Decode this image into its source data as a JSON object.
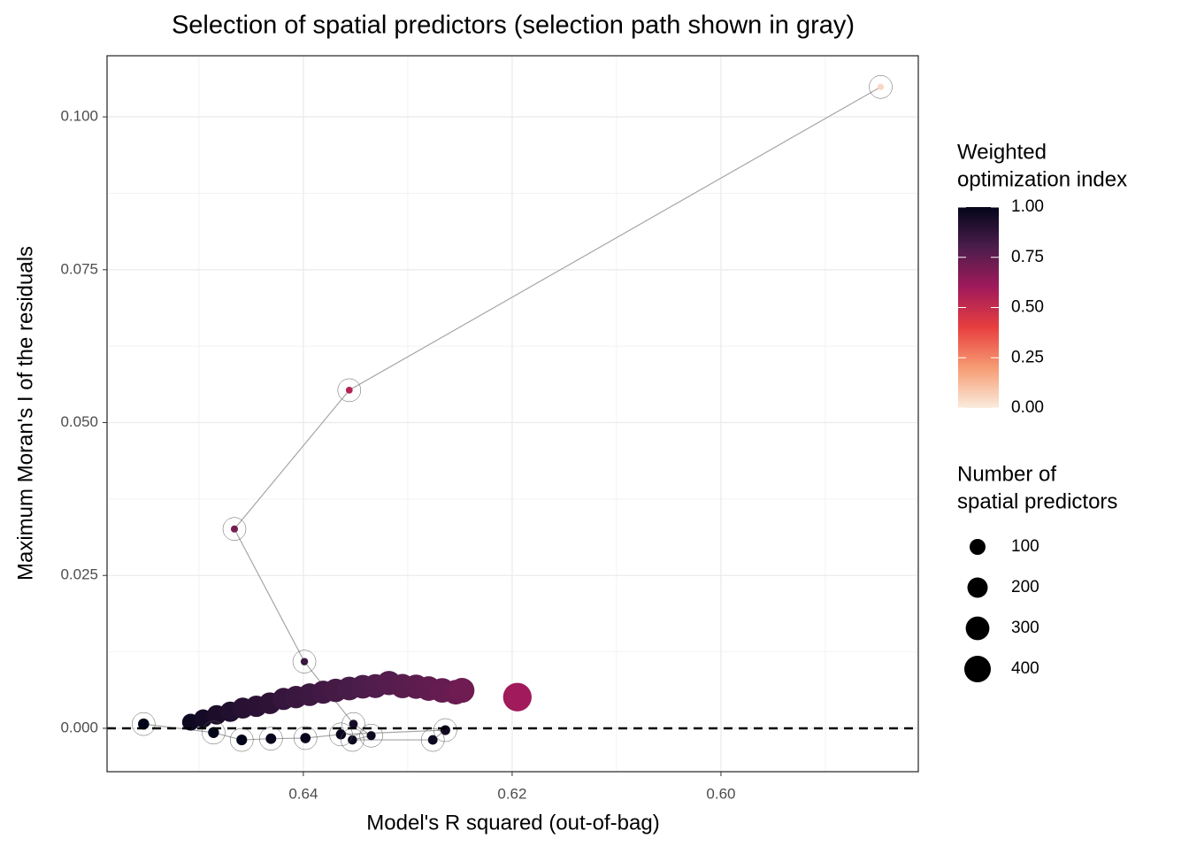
{
  "chart_data": {
    "type": "scatter",
    "title": "Selection of spatial predictors (selection path shown in gray)",
    "x_label": "Model's R squared (out-of-bag)",
    "y_label": "Maximum Moran's I of the residuals",
    "xlim": [
      0.6588,
      0.5811
    ],
    "ylim": [
      -0.0071,
      0.11
    ],
    "xticks": [
      0.64,
      0.62,
      {
        "value": 0.6,
        "label": "0.60"
      }
    ],
    "yticks": [
      {
        "value": 0,
        "label": "0.000"
      },
      {
        "value": 0.025,
        "label": "0.025"
      },
      {
        "value": 0.05,
        "label": "0.050"
      },
      {
        "value": 0.075,
        "label": "0.075"
      },
      {
        "value": 0.1,
        "label": "0.100"
      }
    ],
    "xminor_ticks": [
      0.65,
      0.63,
      0.61,
      0.59
    ],
    "yminor_ticks": [
      0.0125,
      0.0375,
      0.0625,
      0.0875
    ],
    "grid": true,
    "reference_line": 0,
    "path_color": "#a6a6a6",
    "colorscale": [
      "#FAEBDD",
      "#F69C73",
      "#E83F3F",
      "#A11A5B",
      "#4C1D4B",
      "#03051A"
    ],
    "points": {
      "x": [
        0.6508,
        0.6496,
        0.6483,
        0.647,
        0.6458,
        0.6445,
        0.6432,
        0.6419,
        0.6407,
        0.6394,
        0.6381,
        0.6369,
        0.6356,
        0.6343,
        0.6331,
        0.6318,
        0.6305,
        0.6292,
        0.628,
        0.6267,
        0.6254,
        0.6248,
        0.6195,
        0.5847,
        0.6356,
        0.6466,
        0.6399,
        0.6352,
        0.6335,
        0.6353,
        0.6276,
        0.6264,
        0.6364,
        0.6398,
        0.6431,
        0.6459,
        0.6486,
        0.6553
      ],
      "y": [
        0.001,
        0.0016,
        0.0022,
        0.0027,
        0.0033,
        0.0036,
        0.0041,
        0.0048,
        0.0051,
        0.0055,
        0.0059,
        0.0062,
        0.0065,
        0.0068,
        0.0069,
        0.0074,
        0.0069,
        0.0068,
        0.0065,
        0.0062,
        0.0059,
        0.0062,
        0.0051,
        0.1049,
        0.0553,
        0.0326,
        0.0109,
        0.0007,
        -0.0012,
        -0.0019,
        -0.0019,
        -0.0003,
        -0.001,
        -0.0016,
        -0.0017,
        -0.0019,
        -0.0007,
        0.0007
      ],
      "size": [
        120,
        150,
        180,
        200,
        220,
        230,
        240,
        250,
        260,
        270,
        280,
        290,
        300,
        300,
        310,
        320,
        320,
        320,
        330,
        330,
        330,
        340,
        480,
        1,
        2,
        3,
        4,
        10,
        12,
        14,
        16,
        18,
        20,
        22,
        24,
        26,
        28,
        30
      ],
      "index": [
        0.97,
        0.95,
        0.93,
        0.92,
        0.9,
        0.89,
        0.88,
        0.86,
        0.85,
        0.84,
        0.83,
        0.82,
        0.81,
        0.8,
        0.79,
        0.78,
        0.77,
        0.76,
        0.75,
        0.74,
        0.73,
        0.72,
        0.6,
        0.05,
        0.55,
        0.7,
        0.85,
        0.95,
        0.97,
        0.98,
        0.97,
        0.96,
        0.98,
        0.99,
        0.99,
        1,
        1,
        1
      ]
    },
    "selection_path": {
      "x": [
        0.5847,
        0.6356,
        0.6466,
        0.6399,
        0.6352,
        0.6335,
        0.6353,
        0.6276,
        0.6264,
        0.6364,
        0.6398,
        0.6431,
        0.6459,
        0.6486,
        0.6553
      ],
      "y": [
        0.1049,
        0.0553,
        0.0326,
        0.0109,
        0.0007,
        -0.0012,
        -0.0019,
        -0.0019,
        -0.0003,
        -0.001,
        -0.0016,
        -0.0017,
        -0.0019,
        -0.0007,
        0.0007
      ]
    },
    "color_legend": {
      "title": [
        "Weighted",
        "optimization index"
      ],
      "lim": [
        0,
        1
      ],
      "ticks": [
        {
          "value": 0,
          "label": "0.00"
        },
        {
          "value": 0.25,
          "label": "0.25"
        },
        {
          "value": 0.5,
          "label": "0.50"
        },
        {
          "value": 0.75,
          "label": "0.75"
        },
        {
          "value": 1,
          "label": "1.00"
        }
      ]
    },
    "size_legend": {
      "title": [
        "Number of",
        "spatial predictors"
      ],
      "values": [
        100,
        200,
        300,
        400
      ]
    }
  }
}
